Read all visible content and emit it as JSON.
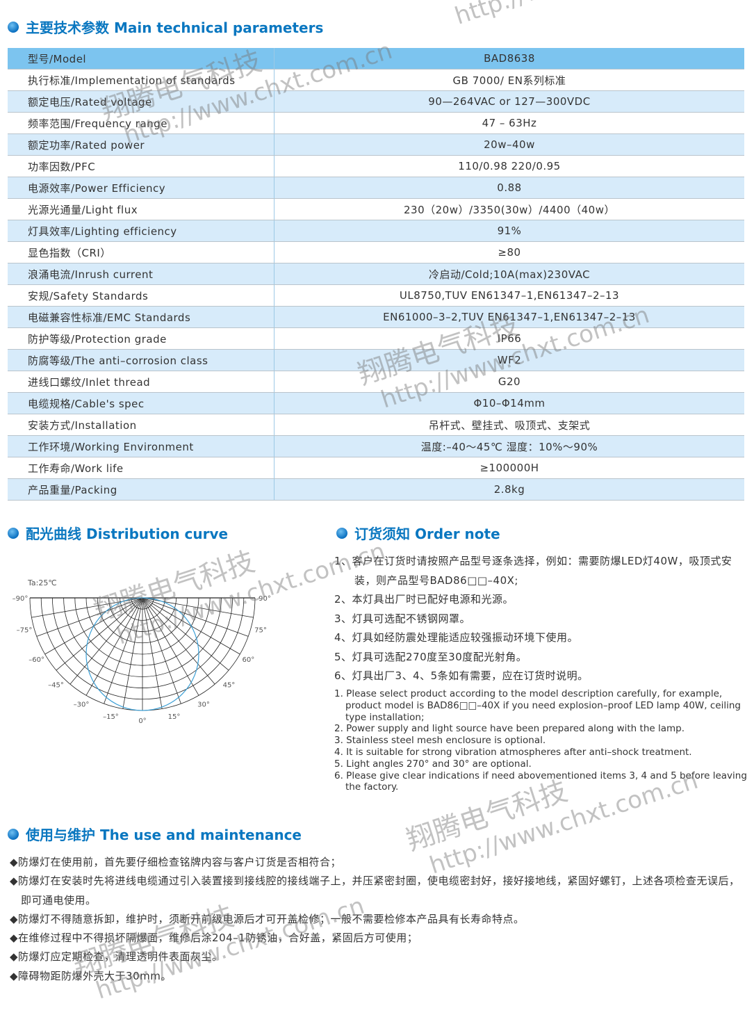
{
  "sections": {
    "params_title": "主要技术参数 Main technical parameters",
    "curve_title": "配光曲线 Distribution curve",
    "order_title": "订货须知 Order note",
    "maint_title": "使用与维护 The use and maintenance"
  },
  "params": [
    {
      "k": "型号/Model",
      "v": "BAD8638"
    },
    {
      "k": "执行标准/Implementation of standards",
      "v": "GB 7000/ EN系列标准"
    },
    {
      "k": "额定电压/Rated voltage",
      "v": "90—264VAC  or  127—300VDC"
    },
    {
      "k": "频率范围/Frequency range",
      "v": "47 – 63Hz"
    },
    {
      "k": "额定功率/Rated power",
      "v": "20w–40w"
    },
    {
      "k": "功率因数/PFC",
      "v": "110/0.98   220/0.95"
    },
    {
      "k": "电源效率/Power Efficiency",
      "v": "0.88"
    },
    {
      "k": "光源光通量/Light flux",
      "v": "230（20w）/3350(30w）/4400（40w）"
    },
    {
      "k": "灯具效率/Lighting efficiency",
      "v": "91%"
    },
    {
      "k": "显色指数（CRI）",
      "v": "≥80"
    },
    {
      "k": "浪涌电流/Inrush current",
      "v": "冷启动/Cold;10A(max)230VAC"
    },
    {
      "k": "安规/Safety Standards",
      "v": "UL8750,TUV EN61347–1,EN61347–2–13"
    },
    {
      "k": "电磁兼容性标准/EMC Standards",
      "v": "EN61000–3–2,TUV EN61347–1,EN61347–2–13"
    },
    {
      "k": "防护等级/Protection grade",
      "v": "IP66"
    },
    {
      "k": "防腐等级/The anti–corrosion class",
      "v": "WF2"
    },
    {
      "k": "进线口螺纹/Inlet thread",
      "v": "G20"
    },
    {
      "k": "电缆规格/Cable's spec",
      "v": "Φ10–Φ14mm"
    },
    {
      "k": "安装方式/Installation",
      "v": "吊杆式、壁挂式、吸顶式、支架式"
    },
    {
      "k": "工作环境/Working Environment",
      "v": "温度:–40～45℃ 湿度：10%～90%"
    },
    {
      "k": "工作寿命/Work life",
      "v": "≥100000H"
    },
    {
      "k": "产品重量/Packing",
      "v": "2.8kg"
    }
  ],
  "curve": {
    "note": "Ta:25℃",
    "angle_labels_left": [
      "–90°",
      "–75°",
      "–60°",
      "–45°",
      "–30°",
      "–15°"
    ],
    "center_label": "0°",
    "angle_labels_right": [
      "15°",
      "30°",
      "45°",
      "60°",
      "75°",
      "90°"
    ],
    "curve_color": "#3a9fd6"
  },
  "order_cn": [
    "1、客户在订货时请按照产品型号逐条选择，例如：需要防爆LED灯40W，吸顶式安装，则产品型号BAD86□□–40X;",
    "2、本灯具出厂时已配好电源和光源。",
    "3、灯具可选配不锈钢网罩。",
    "4、灯具如经防震处理能适应较强振动环境下使用。",
    "5、灯具可选配270度至30度配光射角。",
    "6、灯具出厂3、4、5条如有需要，应在订货时说明。"
  ],
  "order_en": [
    "1. Please select product according to the model description carefully, for example, product model is BAD86□□–40X if you need explosion–proof LED lamp 40W, ceiling type installation;",
    "2. Power supply and light source have been prepared along with the lamp.",
    "3. Stainless steel mesh enclosure is optional.",
    "4. It is suitable for strong vibration atmospheres after anti–shock treatment.",
    "5. Light angles 270°  and 30°  are optional.",
    "6. Please give clear indications if need abovementioned items 3, 4 and 5 before leaving the factory."
  ],
  "maintenance": [
    "◆防爆灯在使用前，首先要仔细检查铭牌内容与客户订货是否相符合；",
    "◆防爆灯在安装时先将进线电缆通过引入装置接到接线腔的接线端子上，并压紧密封圈，使电缆密封好，接好接地线，紧固好螺钉，上述各项检查无误后，即可通电使用。",
    "◆防爆灯不得随意拆卸，维护时，须断开前级电源后才可开盖检修；一般不需要检修本产品具有长寿命特点。",
    "◆在维修过程中不得损坏隔爆面，维修后涂204–1防锈油，合好盖，紧固后方可使用；",
    "◆防爆灯应定期检查，清理透明件表面灰尘。",
    "◆障碍物距防爆外壳大于30mm。"
  ],
  "watermark": {
    "name": "翔腾电气科技",
    "url": "http://www.chxt.com.cn"
  },
  "colors": {
    "accent": "#0a77c0",
    "header_row": "#7cc4ef",
    "stripe": "#d7ebfa"
  }
}
